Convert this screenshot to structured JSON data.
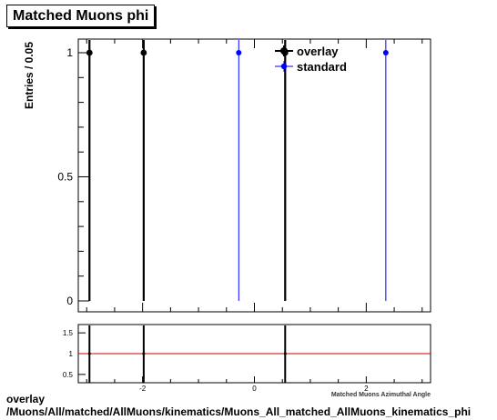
{
  "title": "Matched Muons phi",
  "footer": {
    "line1": "overlay",
    "line2": "/Muons/All/matched/AllMuons/kinematics/Muons_All_matched_AllMuons_kinematics_phi"
  },
  "chart_data": [
    {
      "type": "scatter",
      "title": "Matched Muons phi",
      "ylabel": "Entries / 0.05",
      "xlabel": "",
      "xlim": [
        -3.15,
        3.15
      ],
      "ylim": [
        0,
        1.05
      ],
      "yticks": [
        0,
        0.5,
        1
      ],
      "ytick_labels": [
        "0",
        "0.5",
        "1"
      ],
      "legend": {
        "placement": "top-right"
      },
      "series": [
        {
          "name": "overlay",
          "color": "#000000",
          "marker": "filled-circle",
          "x": [
            -2.95,
            -1.98,
            0.55
          ],
          "y": [
            1,
            1,
            1
          ]
        },
        {
          "name": "standard",
          "color": "#0000ff",
          "marker": "filled-circle",
          "x": [
            -0.28,
            2.35
          ],
          "y": [
            1,
            1
          ]
        }
      ]
    },
    {
      "type": "scatter",
      "title": "",
      "xlabel": "Matched Muons Azimuthal Angle",
      "ylabel": "",
      "xlim": [
        -3.15,
        3.15
      ],
      "ylim": [
        0.3,
        1.7
      ],
      "xticks": [
        -2,
        0,
        2
      ],
      "xtick_labels": [
        "-2",
        "0",
        "2"
      ],
      "yticks": [
        0.5,
        1,
        1.5
      ],
      "ytick_labels": [
        "0.5",
        "1",
        "1.5"
      ],
      "reference_line": {
        "y": 1,
        "color": "#cc0000"
      },
      "series": [
        {
          "name": "",
          "color": "#000000",
          "marker": "vertical-bar",
          "x": [
            -2.95,
            -1.98,
            0.55
          ],
          "y": [
            1,
            1,
            1
          ]
        }
      ]
    }
  ]
}
